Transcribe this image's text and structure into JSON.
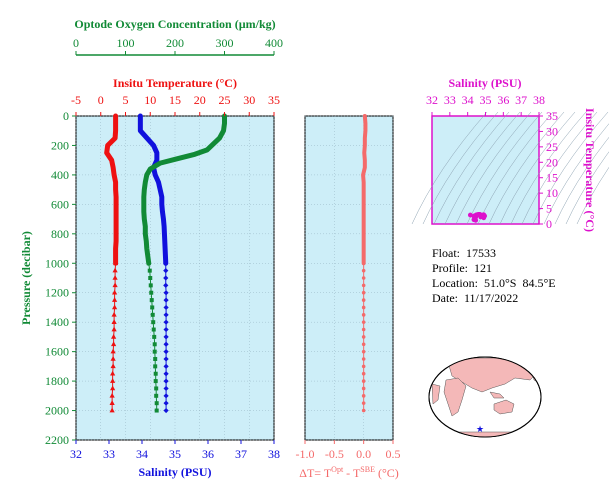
{
  "colors": {
    "panel_bg": "#cdeef8",
    "oxygen": "#118a36",
    "temperature": "#ee1111",
    "salinity": "#1111dd",
    "delta_t": "#f46a6a",
    "ts_axis": "#dd11cc",
    "land": "#f4b8b8",
    "pressure_axis": "#118a36"
  },
  "info": {
    "float": "Float:  17533",
    "profile": "Profile:  121",
    "location": "Location:  51.0°S  84.5°E",
    "date": "Date:  11/17/2022"
  },
  "chart_data": [
    {
      "type": "line",
      "name": "profile-panel",
      "title": "",
      "ylabel": "Pressure (decibar)",
      "ylim": [
        2200,
        0
      ],
      "yticks": [
        "0",
        "200",
        "400",
        "600",
        "800",
        "1000",
        "1200",
        "1400",
        "1600",
        "1800",
        "2000",
        "2200"
      ],
      "axes": {
        "oxygen": {
          "label": "Optode Oxygen Concentration (µm/kg)",
          "range": [
            0,
            400
          ],
          "ticks": [
            "0",
            "100",
            "200",
            "300",
            "400"
          ]
        },
        "temperature": {
          "label": "Insitu Temperature (°C)",
          "range": [
            -5,
            35
          ],
          "ticks": [
            "-5",
            "0",
            "5",
            "10",
            "15",
            "20",
            "25",
            "30",
            "35"
          ]
        },
        "salinity": {
          "label": "Salinity (PSU)",
          "range": [
            32,
            38
          ],
          "ticks": [
            "32",
            "33",
            "34",
            "35",
            "36",
            "37",
            "38"
          ]
        }
      },
      "series": [
        {
          "key": "temperature",
          "axis": "temperature",
          "points": [
            [
              3.0,
              0
            ],
            [
              3.0,
              50
            ],
            [
              3.0,
              100
            ],
            [
              2.9,
              150
            ],
            [
              1.4,
              200
            ],
            [
              1.2,
              250
            ],
            [
              2.2,
              300
            ],
            [
              2.5,
              350
            ],
            [
              2.7,
              400
            ],
            [
              3.0,
              450
            ],
            [
              3.0,
              500
            ],
            [
              3.1,
              550
            ],
            [
              3.1,
              600
            ],
            [
              3.1,
              650
            ],
            [
              3.1,
              700
            ],
            [
              3.1,
              750
            ],
            [
              3.1,
              800
            ],
            [
              3.1,
              850
            ],
            [
              3.0,
              900
            ],
            [
              3.0,
              950
            ],
            [
              3.0,
              1000
            ],
            [
              2.9,
              1050
            ],
            [
              2.9,
              1100
            ],
            [
              2.9,
              1150
            ],
            [
              2.8,
              1200
            ],
            [
              2.8,
              1250
            ],
            [
              2.8,
              1300
            ],
            [
              2.7,
              1350
            ],
            [
              2.7,
              1400
            ],
            [
              2.7,
              1450
            ],
            [
              2.6,
              1500
            ],
            [
              2.6,
              1550
            ],
            [
              2.5,
              1600
            ],
            [
              2.5,
              1650
            ],
            [
              2.5,
              1700
            ],
            [
              2.4,
              1750
            ],
            [
              2.4,
              1800
            ],
            [
              2.4,
              1850
            ],
            [
              2.3,
              1900
            ],
            [
              2.3,
              1950
            ],
            [
              2.3,
              2000
            ]
          ]
        },
        {
          "key": "salinity",
          "axis": "salinity",
          "points": [
            [
              33.95,
              0
            ],
            [
              33.95,
              50
            ],
            [
              33.95,
              100
            ],
            [
              34.15,
              150
            ],
            [
              34.35,
              200
            ],
            [
              34.45,
              250
            ],
            [
              34.45,
              300
            ],
            [
              34.35,
              350
            ],
            [
              34.4,
              400
            ],
            [
              34.5,
              450
            ],
            [
              34.55,
              500
            ],
            [
              34.6,
              550
            ],
            [
              34.6,
              600
            ],
            [
              34.62,
              650
            ],
            [
              34.65,
              700
            ],
            [
              34.67,
              750
            ],
            [
              34.68,
              800
            ],
            [
              34.69,
              850
            ],
            [
              34.7,
              900
            ],
            [
              34.71,
              950
            ],
            [
              34.72,
              1000
            ],
            [
              34.72,
              1050
            ],
            [
              34.72,
              1100
            ],
            [
              34.72,
              1150
            ],
            [
              34.73,
              1200
            ],
            [
              34.73,
              1250
            ],
            [
              34.73,
              1300
            ],
            [
              34.73,
              1350
            ],
            [
              34.73,
              1400
            ],
            [
              34.73,
              1450
            ],
            [
              34.73,
              1500
            ],
            [
              34.73,
              1550
            ],
            [
              34.73,
              1600
            ],
            [
              34.73,
              1650
            ],
            [
              34.73,
              1700
            ],
            [
              34.73,
              1750
            ],
            [
              34.73,
              1800
            ],
            [
              34.73,
              1850
            ],
            [
              34.73,
              1900
            ],
            [
              34.73,
              1950
            ],
            [
              34.73,
              2000
            ]
          ]
        },
        {
          "key": "oxygen",
          "axis": "oxygen",
          "points": [
            [
              300,
              0
            ],
            [
              300,
              50
            ],
            [
              298,
              100
            ],
            [
              290,
              150
            ],
            [
              265,
              230
            ],
            [
              240,
              260
            ],
            [
              205,
              290
            ],
            [
              170,
              320
            ],
            [
              150,
              360
            ],
            [
              143,
              400
            ],
            [
              140,
              450
            ],
            [
              138,
              500
            ],
            [
              137,
              550
            ],
            [
              137,
              600
            ],
            [
              137,
              650
            ],
            [
              138,
              700
            ],
            [
              140,
              750
            ],
            [
              140,
              800
            ],
            [
              142,
              850
            ],
            [
              143,
              900
            ],
            [
              145,
              950
            ],
            [
              147,
              1000
            ],
            [
              149,
              1050
            ],
            [
              150,
              1100
            ],
            [
              151,
              1150
            ],
            [
              152,
              1200
            ],
            [
              153,
              1250
            ],
            [
              154,
              1300
            ],
            [
              155,
              1350
            ],
            [
              156,
              1400
            ],
            [
              157,
              1450
            ],
            [
              158,
              1500
            ],
            [
              159,
              1550
            ],
            [
              159,
              1600
            ],
            [
              160,
              1650
            ],
            [
              160,
              1700
            ],
            [
              161,
              1750
            ],
            [
              161,
              1800
            ],
            [
              162,
              1850
            ],
            [
              162,
              1900
            ],
            [
              163,
              1950
            ],
            [
              163,
              2000
            ]
          ]
        }
      ]
    },
    {
      "type": "line",
      "name": "delta-t-panel",
      "xlabel": "ΔT= T^Opt - T^SBE (°C)",
      "xlim": [
        -1.0,
        0.5
      ],
      "xticks": [
        "-1.0",
        "-0.5",
        "0.0",
        "0.5"
      ],
      "ylim": [
        2200,
        0
      ],
      "points": [
        [
          0.02,
          0
        ],
        [
          0.03,
          50
        ],
        [
          0.03,
          100
        ],
        [
          0.02,
          150
        ],
        [
          0.02,
          200
        ],
        [
          0.01,
          250
        ],
        [
          0.02,
          300
        ],
        [
          0.02,
          350
        ],
        [
          -0.01,
          400
        ],
        [
          0.0,
          450
        ],
        [
          0.0,
          500
        ],
        [
          0.0,
          550
        ],
        [
          0.0,
          600
        ],
        [
          0.0,
          650
        ],
        [
          0.0,
          700
        ],
        [
          0.0,
          750
        ],
        [
          0.0,
          800
        ],
        [
          0.0,
          850
        ],
        [
          0.0,
          900
        ],
        [
          0.0,
          950
        ],
        [
          0.0,
          1000
        ],
        [
          0.0,
          1050
        ],
        [
          0.0,
          1100
        ],
        [
          0.0,
          1150
        ],
        [
          0.0,
          1200
        ],
        [
          0.0,
          1250
        ],
        [
          0.0,
          1300
        ],
        [
          0.0,
          1350
        ],
        [
          0.0,
          1400
        ],
        [
          0.0,
          1450
        ],
        [
          0.0,
          1500
        ],
        [
          0.0,
          1550
        ],
        [
          0.0,
          1600
        ],
        [
          0.0,
          1650
        ],
        [
          0.0,
          1700
        ],
        [
          0.0,
          1750
        ],
        [
          0.0,
          1800
        ],
        [
          0.0,
          1850
        ],
        [
          0.0,
          1900
        ],
        [
          0.0,
          1950
        ],
        [
          0.0,
          2000
        ]
      ]
    },
    {
      "type": "scatter",
      "name": "ts-diagram",
      "xlabel": "Salinity (PSU)",
      "ylabel": "Insitu Temperature (°C)",
      "xlim": [
        32,
        38
      ],
      "ylim": [
        0,
        35
      ],
      "xticks": [
        "32",
        "33",
        "34",
        "35",
        "36",
        "37",
        "38"
      ],
      "yticks": [
        "0",
        "5",
        "10",
        "15",
        "20",
        "25",
        "30",
        "35"
      ],
      "points": [
        [
          34.15,
          2.9
        ],
        [
          34.35,
          1.4
        ],
        [
          34.45,
          1.2
        ],
        [
          34.45,
          2.2
        ],
        [
          34.35,
          2.5
        ],
        [
          34.4,
          2.7
        ],
        [
          34.5,
          3.0
        ],
        [
          34.55,
          3.0
        ],
        [
          34.6,
          3.1
        ],
        [
          34.65,
          3.1
        ],
        [
          34.68,
          3.1
        ],
        [
          34.7,
          3.0
        ],
        [
          34.72,
          2.9
        ],
        [
          34.73,
          2.8
        ],
        [
          34.73,
          2.6
        ],
        [
          34.73,
          2.4
        ],
        [
          34.73,
          2.3
        ],
        [
          34.85,
          2.9
        ],
        [
          34.9,
          3.0
        ],
        [
          34.95,
          2.6
        ],
        [
          34.9,
          2.0
        ]
      ]
    }
  ]
}
